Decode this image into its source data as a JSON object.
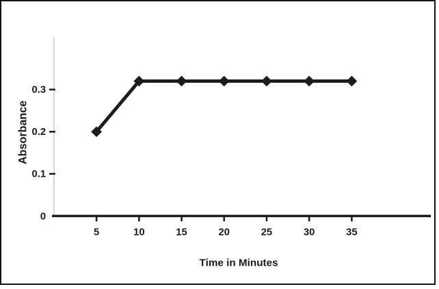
{
  "chart_data": {
    "type": "line",
    "title": "",
    "xlabel": "Time in Minutes",
    "ylabel": "Absorbance",
    "x": [
      5,
      10,
      15,
      20,
      25,
      30,
      35
    ],
    "series": [
      {
        "name": "Absorbance",
        "values": [
          0.2,
          0.32,
          0.32,
          0.32,
          0.32,
          0.32,
          0.32
        ]
      }
    ],
    "x_tick_values": [
      5,
      10,
      15,
      20,
      25,
      30,
      35
    ],
    "x_tick_labels": [
      "5",
      "10",
      "15",
      "20",
      "25",
      "30",
      "35"
    ],
    "y_tick_values": [
      0,
      0.1,
      0.2,
      0.3
    ],
    "y_tick_labels": [
      "0",
      "0.1",
      "0.2",
      "0.3"
    ],
    "xlim": [
      0,
      44.3
    ],
    "ylim": [
      0,
      0.422
    ],
    "grid": false,
    "legend": false,
    "marker": "diamond",
    "colors": {
      "line": "#1c1c1c",
      "axis": "#1c1c1c",
      "y_axis_line": "#bdbdbd",
      "background": "#ffffff",
      "border": "#141414"
    }
  }
}
